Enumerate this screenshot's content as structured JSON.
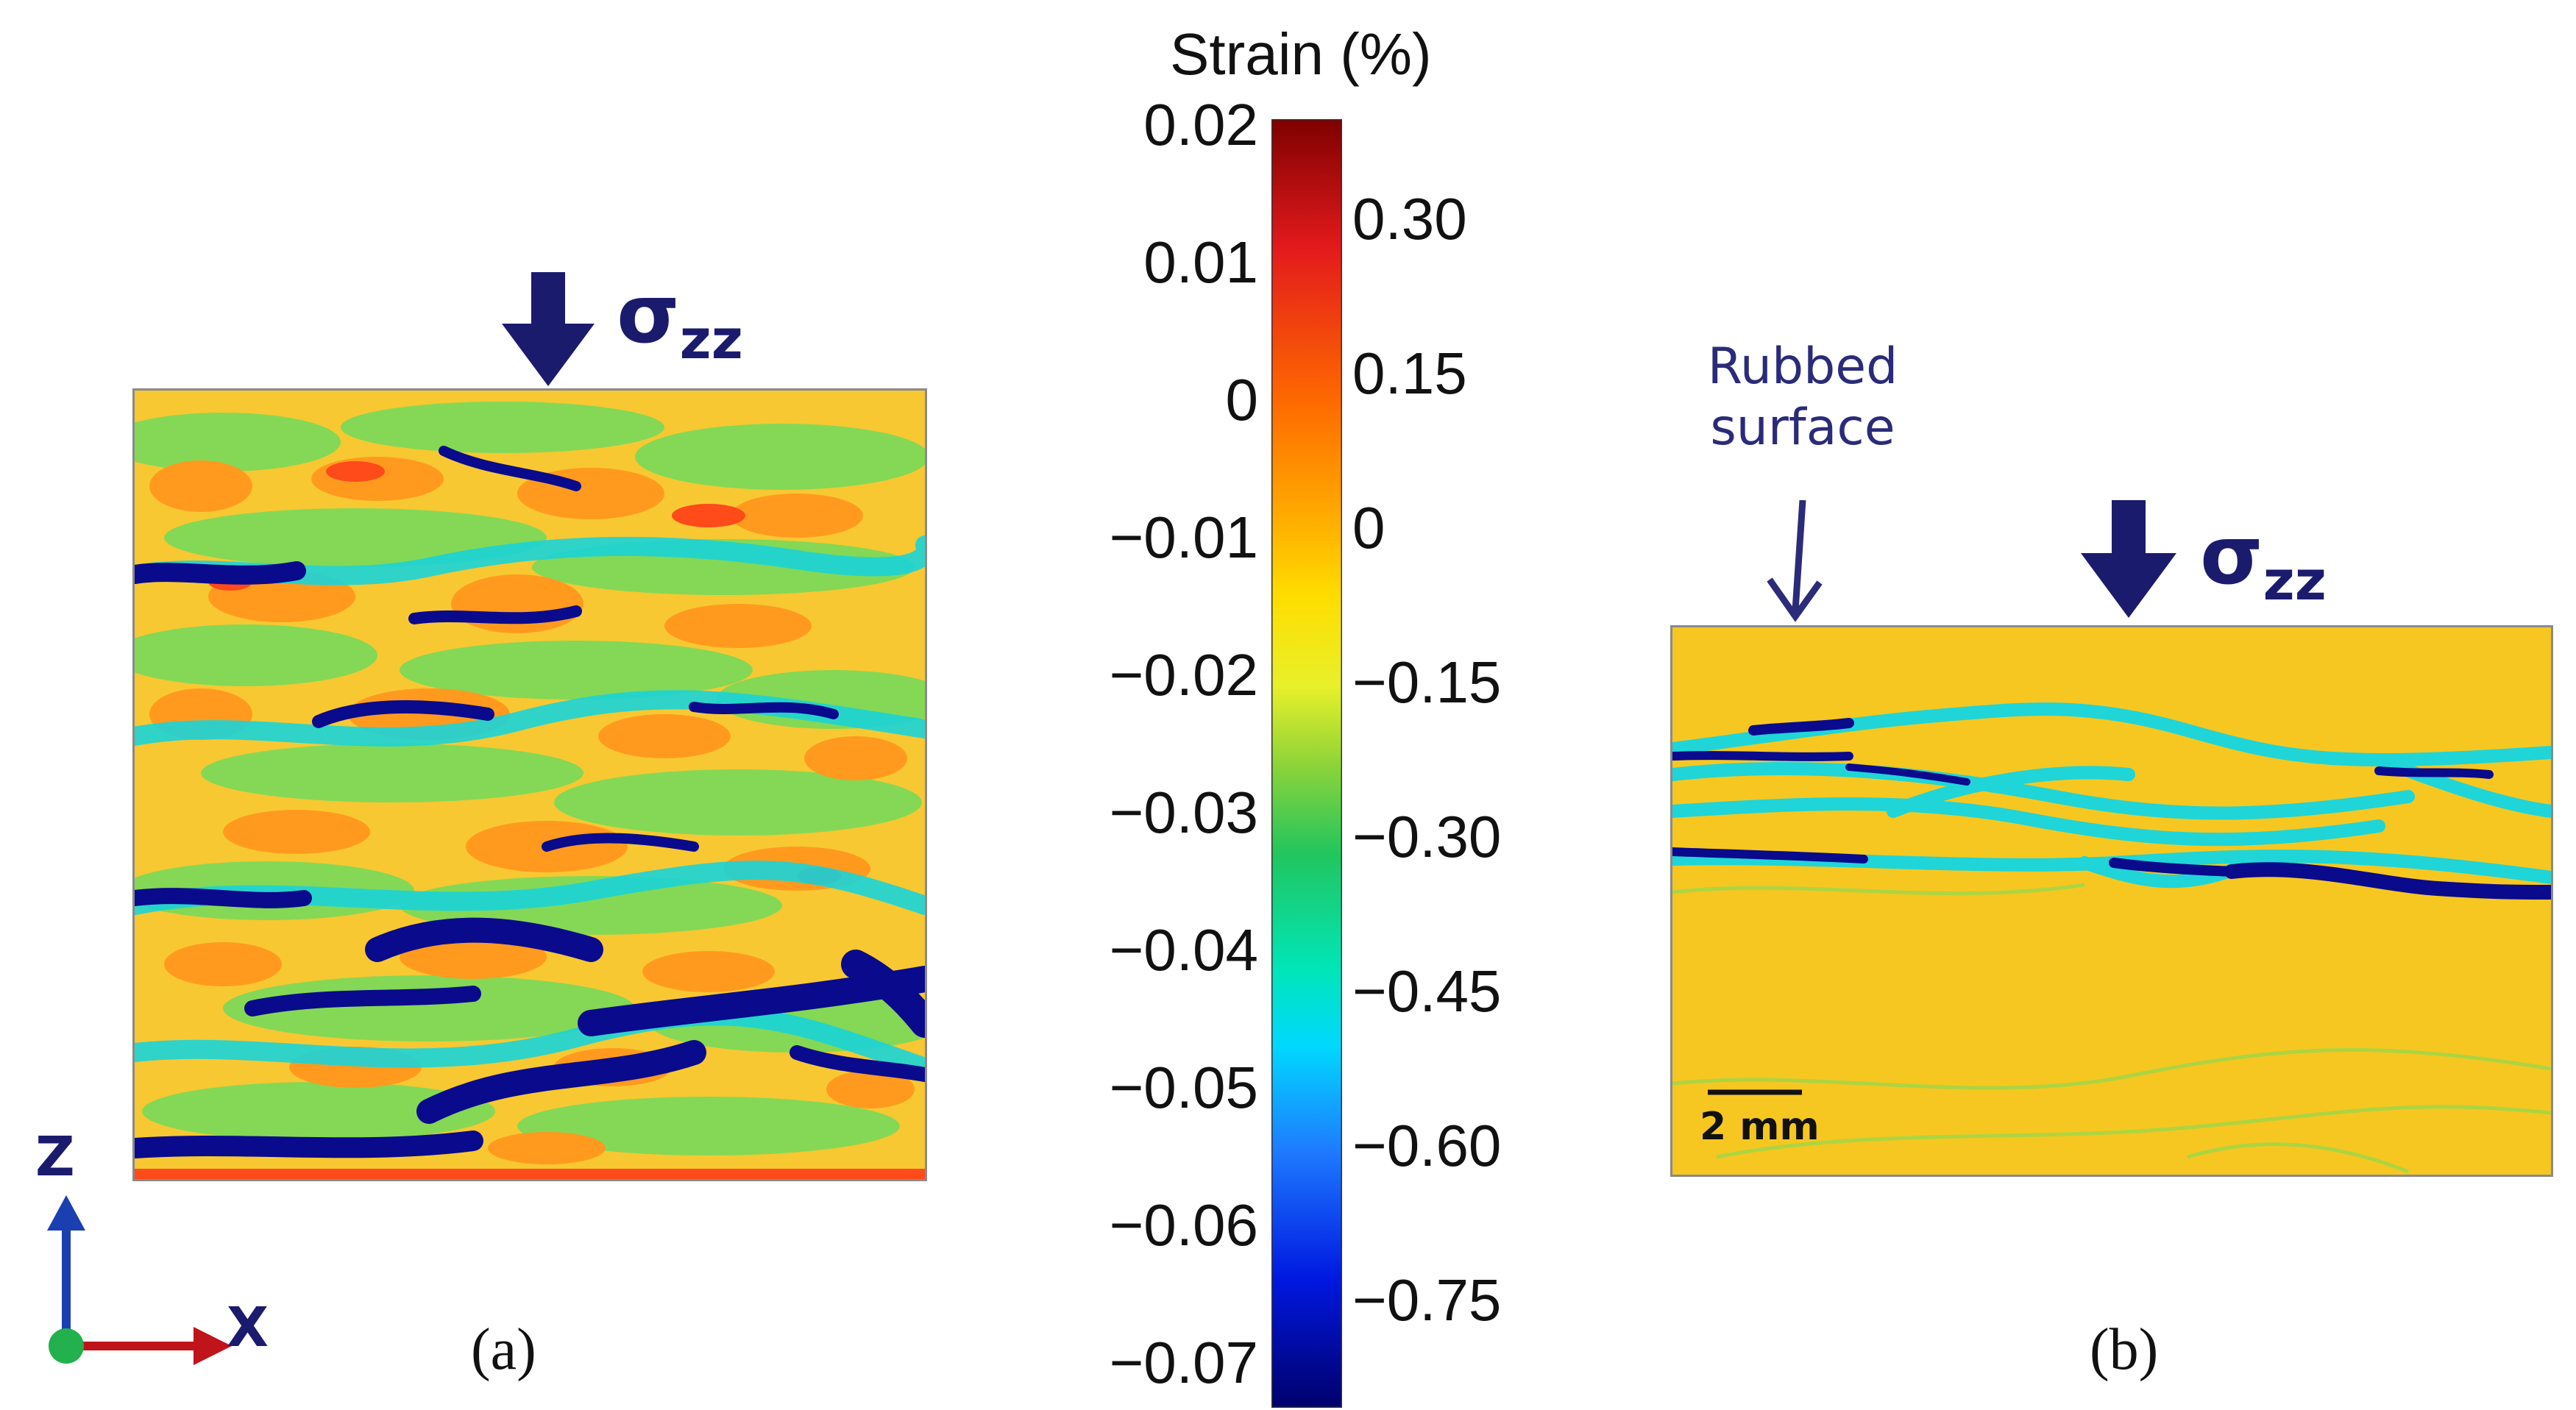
{
  "colorbar": {
    "title": "Strain (%)",
    "left_ticks": [
      "0.02",
      "0.01",
      "0",
      "−0.01",
      "−0.02",
      "−0.03",
      "−0.04",
      "−0.05",
      "−0.06",
      "−0.07"
    ],
    "right_ticks": [
      "0.30",
      "0.15",
      "0",
      "−0.15",
      "−0.30",
      "−0.45",
      "−0.60",
      "−0.75"
    ],
    "colors": [
      "#7f0000",
      "#d7191c",
      "#ff4500",
      "#ff8c00",
      "#ffd700",
      "#ffff33",
      "#9acd32",
      "#32cd32",
      "#00e5a0",
      "#00e5ff",
      "#1e90ff",
      "#0000ff",
      "#00008b"
    ]
  },
  "panel_a": {
    "label": "(a)",
    "stress_label": "σ",
    "stress_sub": "zz",
    "axis_z": "Z",
    "axis_x": "X"
  },
  "panel_b": {
    "label": "(b)",
    "stress_label": "σ",
    "stress_sub": "zz",
    "rubbed_line1": "Rubbed",
    "rubbed_line2": "surface",
    "scale_bar": "2 mm"
  },
  "colors": {
    "arrow": "#1b1b6e",
    "axis_z": "#1a3fb0",
    "axis_x": "#c0141b",
    "origin": "#22b14c",
    "map_b_bg": "#f6c721"
  }
}
